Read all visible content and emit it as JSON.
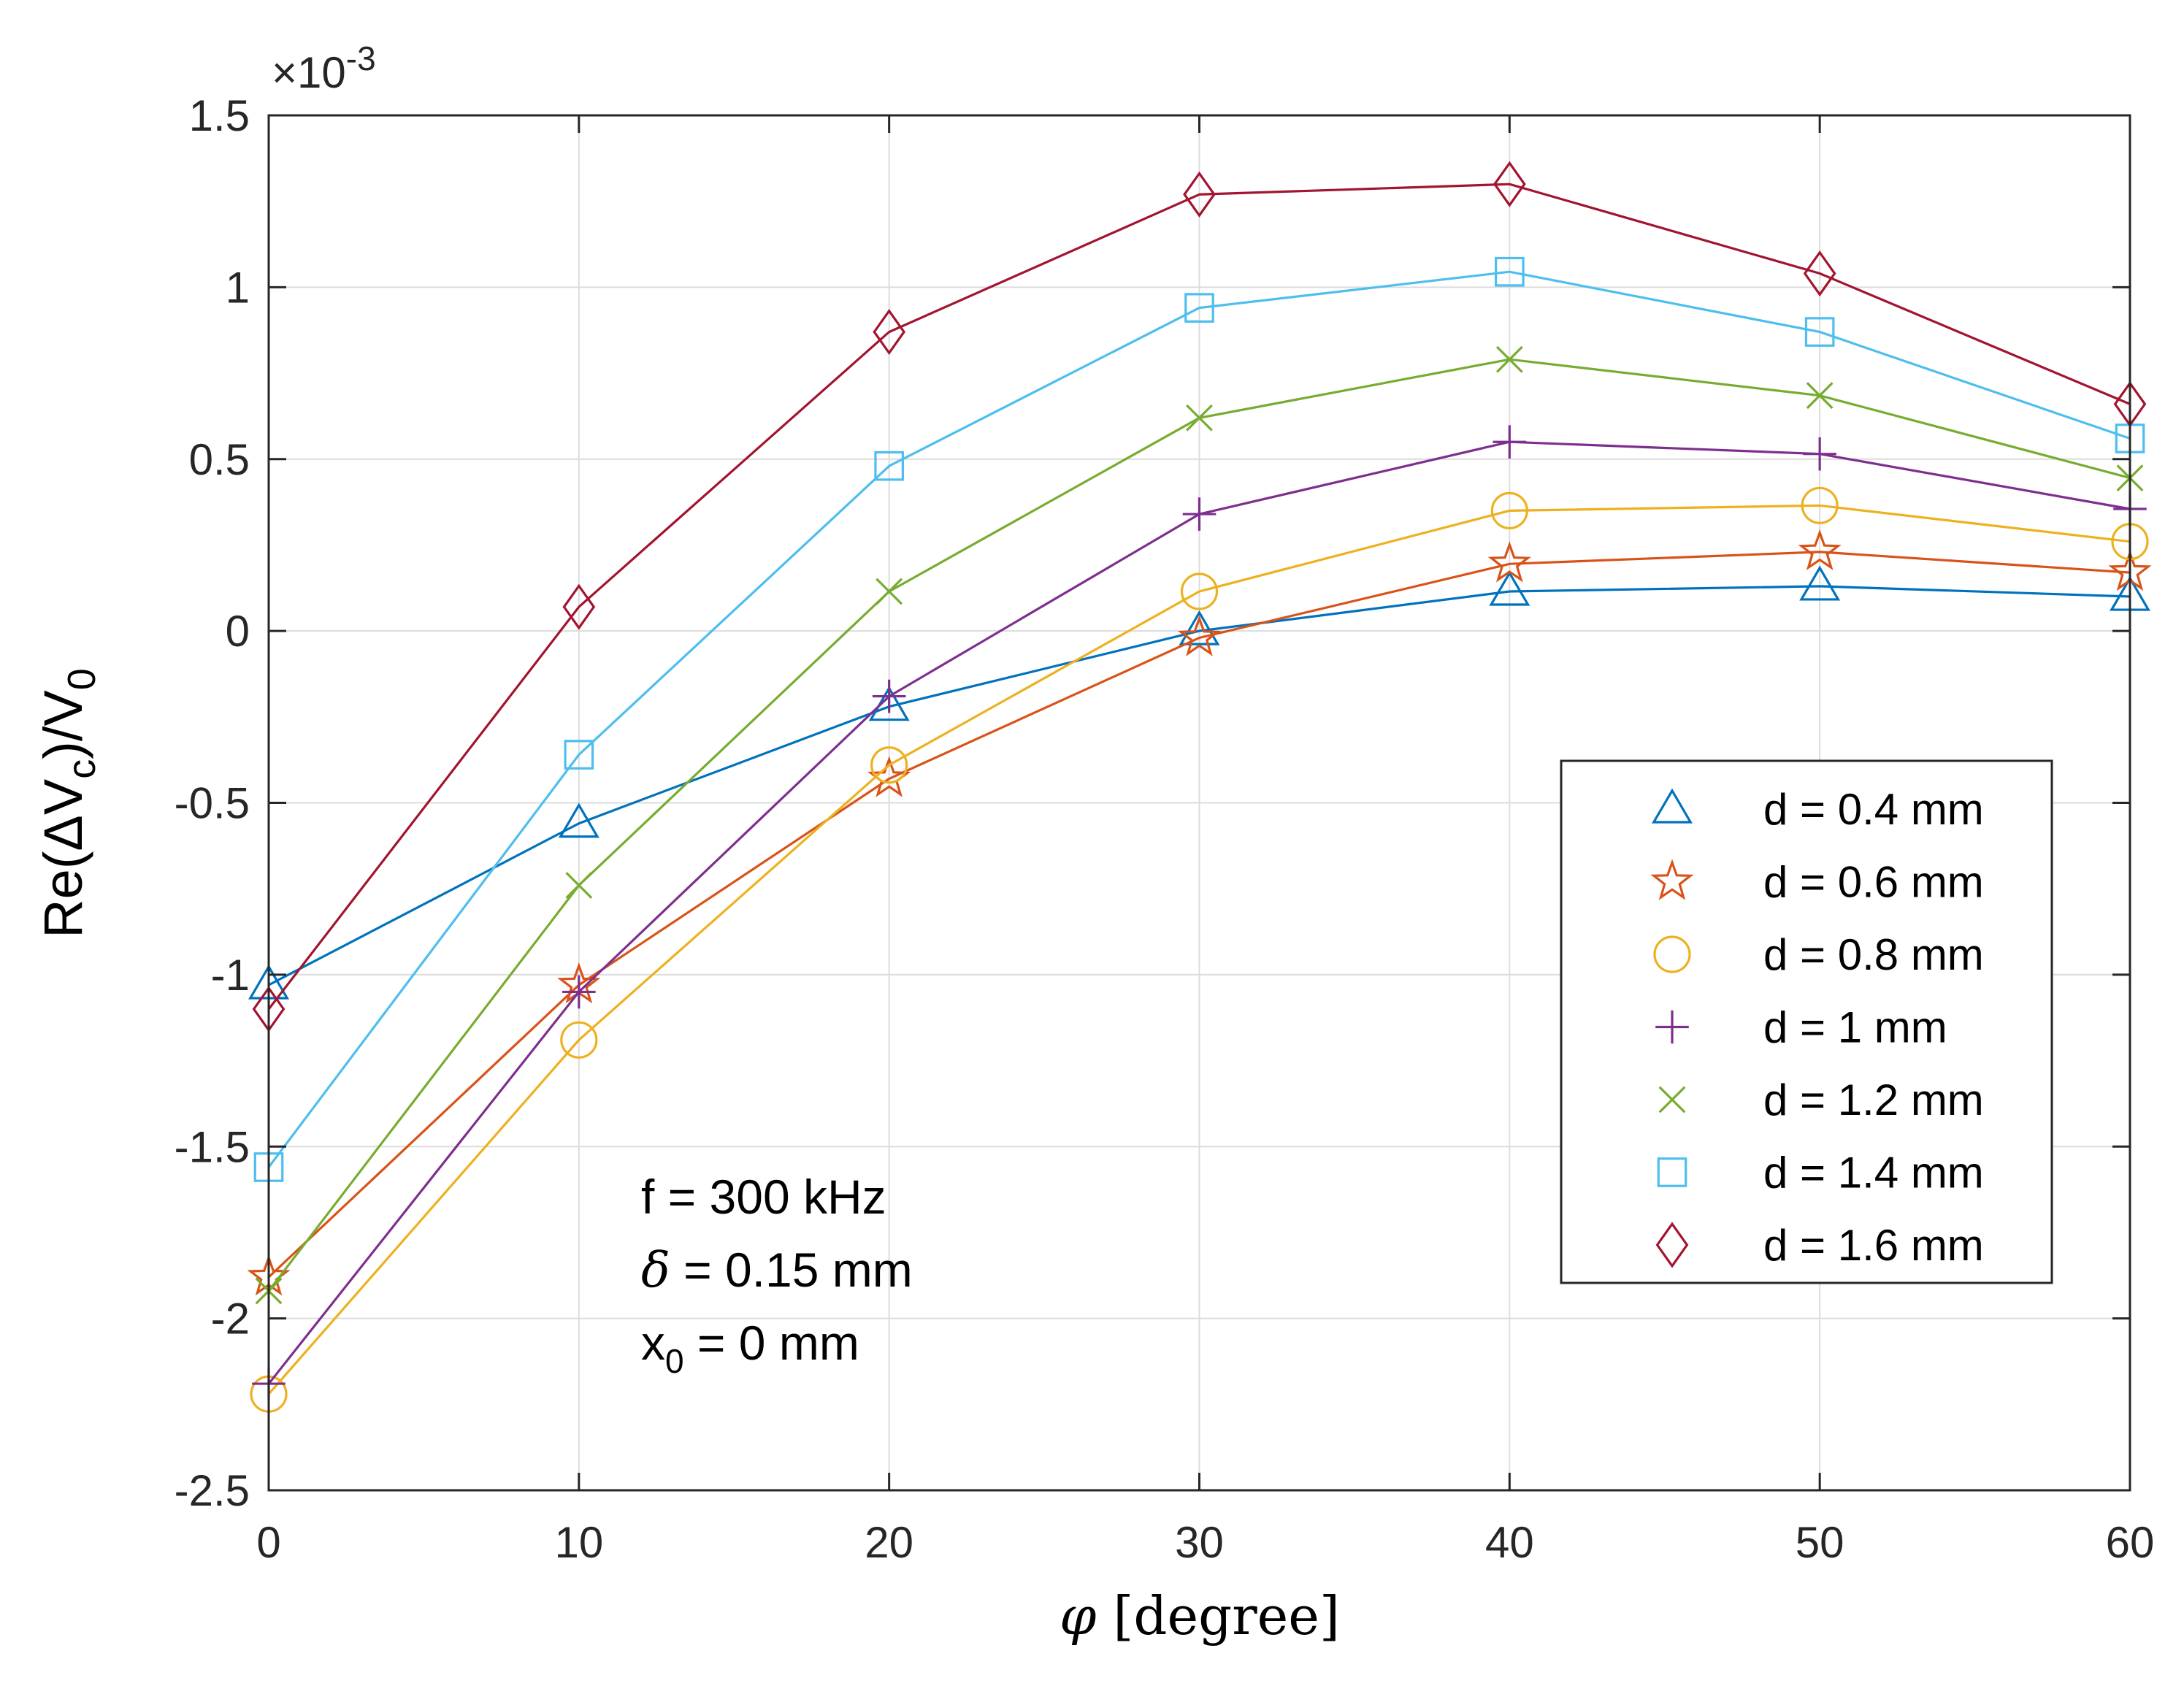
{
  "chart_data": {
    "type": "line",
    "xlabel_symbol": "φ",
    "xlabel_unit": "[degree]",
    "ylabel": "Re(ΔV",
    "ylabel_sub_c": "c",
    "ylabel_mid": ")/V",
    "ylabel_sub_0": "0",
    "axis_multiplier_prefix": "×10",
    "axis_multiplier_exp": "-3",
    "xlim": [
      0,
      60
    ],
    "ylim": [
      -2.5,
      1.5
    ],
    "x_ticks": [
      0,
      10,
      20,
      30,
      40,
      50,
      60
    ],
    "x_tick_labels": [
      "0",
      "10",
      "20",
      "30",
      "40",
      "50",
      "60"
    ],
    "y_ticks": [
      -2.5,
      -2,
      -1.5,
      -1,
      -0.5,
      0,
      0.5,
      1,
      1.5
    ],
    "y_tick_labels": [
      "-2.5",
      "-2",
      "-1.5",
      "-1",
      "-0.5",
      "0",
      "0.5",
      "1",
      "1.5"
    ],
    "grid": true,
    "legend_position": "right-middle",
    "x": [
      0,
      10,
      20,
      30,
      40,
      50,
      60
    ],
    "series": [
      {
        "name": "d = 0.4 mm",
        "marker": "triangle",
        "color": "#0072BD",
        "values": [
          -1.03,
          -0.56,
          -0.22,
          0.0,
          0.115,
          0.13,
          0.1
        ]
      },
      {
        "name": "d = 0.6 mm",
        "marker": "star",
        "color": "#D95319",
        "values": [
          -1.88,
          -1.03,
          -0.43,
          -0.02,
          0.195,
          0.23,
          0.17
        ]
      },
      {
        "name": "d = 0.8 mm",
        "marker": "circle",
        "color": "#EDB120",
        "values": [
          -2.22,
          -1.19,
          -0.39,
          0.115,
          0.35,
          0.365,
          0.26
        ]
      },
      {
        "name": "d = 1 mm",
        "marker": "plus",
        "color": "#7E2F8E",
        "values": [
          -2.19,
          -1.05,
          -0.19,
          0.34,
          0.55,
          0.515,
          0.355
        ]
      },
      {
        "name": "d = 1.2 mm",
        "marker": "x",
        "color": "#77AC30",
        "values": [
          -1.92,
          -0.74,
          0.115,
          0.62,
          0.79,
          0.685,
          0.445
        ]
      },
      {
        "name": "d = 1.4 mm",
        "marker": "square",
        "color": "#4DBEEE",
        "values": [
          -1.56,
          -0.36,
          0.48,
          0.94,
          1.045,
          0.87,
          0.56
        ]
      },
      {
        "name": "d = 1.6 mm",
        "marker": "diamond",
        "color": "#A2142F",
        "values": [
          -1.1,
          0.07,
          0.87,
          1.27,
          1.3,
          1.04,
          0.66
        ]
      }
    ],
    "annotation": {
      "line1": "f = 300 kHz",
      "line2_symbol": "δ",
      "line2_rest": " = 0.15 mm",
      "line3_var": "x",
      "line3_sub": "0",
      "line3_rest": " = 0 mm"
    }
  }
}
